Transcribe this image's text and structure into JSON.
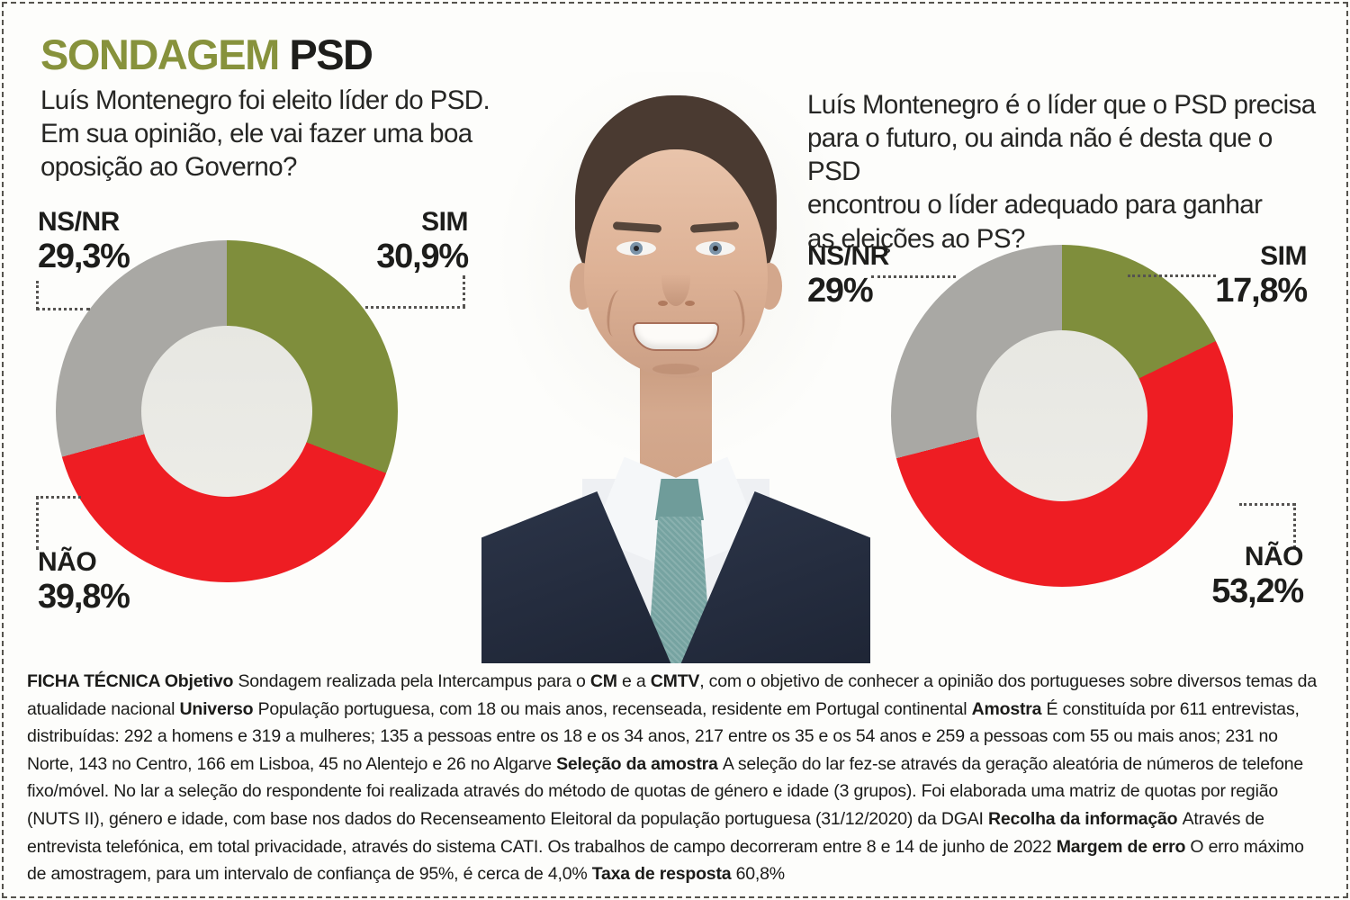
{
  "header": {
    "title_accent": "SONDAGEM",
    "title_rest": "PSD"
  },
  "colors": {
    "accent_green": "#87923c",
    "slice_sim_green": "#7f8e3c",
    "slice_nao_red": "#ee1d23",
    "slice_nsnr_gray": "#a9a8a4",
    "panel_background": "#e5e5e0",
    "text": "#1d1d1b"
  },
  "questions": {
    "left": "Luís Montenegro foi eleito líder do PSD.\nEm sua opinião, ele vai fazer uma boa\noposição ao Governo?",
    "right": "Luís Montenegro é o líder que o PSD precisa\npara o futuro, ou ainda não é desta que o PSD\nencontrou o líder adequado para ganhar\nas eleições ao PS?"
  },
  "chart_data": [
    {
      "type": "pie",
      "variant": "donut",
      "title": "Luís Montenegro foi eleito líder do PSD. Em sua opinião, ele vai fazer uma boa oposição ao Governo?",
      "start_angle": "12 o'clock, clockwise",
      "segments": [
        {
          "label": "SIM",
          "value": 30.9,
          "display": "30,9%",
          "color": "#7f8e3c"
        },
        {
          "label": "NÃO",
          "value": 39.8,
          "display": "39,8%",
          "color": "#ee1d23"
        },
        {
          "label": "NS/NR",
          "value": 29.3,
          "display": "29,3%",
          "color": "#a9a8a4"
        }
      ]
    },
    {
      "type": "pie",
      "variant": "donut",
      "title": "Luís Montenegro é o líder que o PSD precisa para o futuro, ou ainda não é desta que o PSD encontrou o líder adequado para ganhar as eleições ao PS?",
      "start_angle": "12 o'clock, clockwise",
      "segments": [
        {
          "label": "SIM",
          "value": 17.8,
          "display": "17,8%",
          "color": "#7f8e3c"
        },
        {
          "label": "NÃO",
          "value": 53.2,
          "display": "53,2%",
          "color": "#ee1d23"
        },
        {
          "label": "NS/NR",
          "value": 29.0,
          "display": "29%",
          "color": "#a9a8a4"
        }
      ]
    }
  ],
  "ficha": {
    "segments": [
      {
        "text": "FICHA TÉCNICA ",
        "bold": true
      },
      {
        "text": "Objetivo ",
        "bold": true
      },
      {
        "text": "Sondagem realizada pela Intercampus para o ",
        "bold": false
      },
      {
        "text": "CM",
        "bold": true
      },
      {
        "text": " e a ",
        "bold": false
      },
      {
        "text": "CMTV",
        "bold": true
      },
      {
        "text": ", com o objetivo de conhecer a opinião dos portugueses sobre diversos temas da atualidade nacional ",
        "bold": false
      },
      {
        "text": "Universo ",
        "bold": true
      },
      {
        "text": "População portuguesa, com 18 ou mais anos, recenseada, residente em Portugal continental ",
        "bold": false
      },
      {
        "text": "Amostra ",
        "bold": true
      },
      {
        "text": "É constituída por 611 entrevistas, distribuídas: 292 a homens e 319 a mulheres; 135 a pessoas entre os 18 e os 34 anos, 217 entre os 35 e os 54 anos e 259 a pessoas com 55 ou mais anos; 231 no Norte, 143 no Centro, 166 em Lisboa, 45 no Alentejo e 26 no Algarve ",
        "bold": false
      },
      {
        "text": "Seleção da amostra ",
        "bold": true
      },
      {
        "text": "A seleção do lar fez-se através da geração aleatória de números de telefone fixo/móvel. No lar a seleção do respondente foi realizada através do método de quotas de género e idade (3 grupos). Foi elaborada uma matriz de quotas por região (NUTS II), género e idade, com base nos dados do Recenseamento Eleitoral da população portuguesa (31/12/2020) da DGAI ",
        "bold": false
      },
      {
        "text": "Recolha da informação ",
        "bold": true
      },
      {
        "text": "Através de entrevista telefónica, em total privacidade, através do sistema CATI. Os trabalhos de campo decorreram entre 8 e 14 de junho de 2022 ",
        "bold": false
      },
      {
        "text": "Margem de erro ",
        "bold": true
      },
      {
        "text": "O erro máximo de amostragem, para um intervalo de confiança de 95%, é cerca de 4,0% ",
        "bold": false
      },
      {
        "text": "Taxa de resposta ",
        "bold": true
      },
      {
        "text": "60,8%",
        "bold": false
      }
    ]
  }
}
